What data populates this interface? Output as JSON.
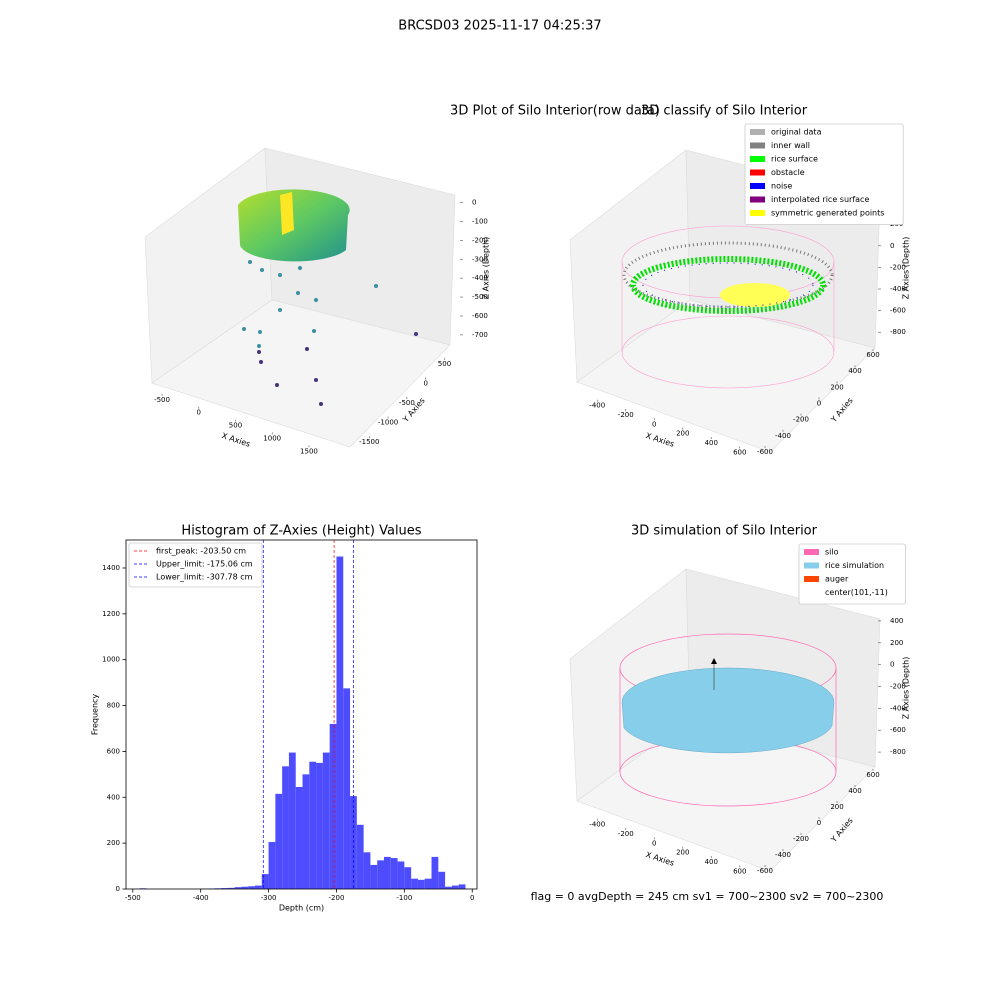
{
  "title": "BRCSD03 2025-11-17 04:25:37",
  "footer": "flag = 0     avgDepth = 245 cm  sv1 = 700~2300  sv2 = 700~2300",
  "chart_data": [
    {
      "type": "scatter3d",
      "title": "3D Plot of Silo Interior(row data)",
      "xlabel": "X Axies",
      "ylabel": "Y Axies",
      "zlabel": "Z Axies (Depth)",
      "xlim": [
        -650,
        1800
      ],
      "xticks": [
        -500,
        0,
        500,
        1000,
        1500
      ],
      "ylim": [
        700,
        -1800
      ],
      "yticks": [
        500,
        0,
        -500,
        -1000,
        -1500
      ],
      "zlim": [
        -780,
        40
      ],
      "zticks": [
        0,
        -100,
        -200,
        -300,
        -400,
        -500,
        -600,
        -700
      ]
    },
    {
      "type": "scatter3d",
      "title": "3D classify of Silo Interior",
      "xlim": [
        -500,
        700
      ],
      "xticks": [
        -400,
        -200,
        0,
        200,
        400,
        600
      ],
      "ylim": [
        -700,
        700
      ],
      "yticks": [
        -600,
        -400,
        -200,
        0,
        200,
        400,
        600
      ],
      "zlim": [
        -900,
        350
      ],
      "zticks": [
        200,
        0,
        -200,
        -400,
        -600,
        -800
      ],
      "xlabel": "X Axies",
      "ylabel": "Y Axies",
      "zlabel": "Z Axies (Depth)",
      "series": [
        {
          "name": "original data",
          "color": "#b0b0b0"
        },
        {
          "name": "inner wall",
          "color": "#808080"
        },
        {
          "name": "rice surface",
          "color": "#00ff00"
        },
        {
          "name": "obstacle",
          "color": "#ff0000"
        },
        {
          "name": "noise",
          "color": "#0000ff"
        },
        {
          "name": "interpolated rice surface",
          "color": "#800080"
        },
        {
          "name": "symmetric generated points",
          "color": "#ffff00"
        }
      ]
    },
    {
      "type": "histogram",
      "title": "Histogram of Z-Axies (Height) Values",
      "xlabel": "Depth (cm)",
      "ylabel": "Frequency",
      "color": "#4d4dff",
      "bins": [
        -490,
        -480,
        -470,
        -460,
        -450,
        -440,
        -430,
        -420,
        -410,
        -400,
        -390,
        -380,
        -370,
        -360,
        -350,
        -340,
        -330,
        -320,
        -310,
        -300,
        -290,
        -280,
        -270,
        -260,
        -250,
        -240,
        -230,
        -220,
        -210,
        -200,
        -190,
        -180,
        -170,
        -160,
        -150,
        -140,
        -130,
        -120,
        -110,
        -100,
        -90,
        -80,
        -70,
        -60,
        -50,
        -40,
        -30,
        -20,
        -10
      ],
      "counts": [
        3,
        0,
        0,
        0,
        0,
        0,
        0,
        0,
        0,
        1,
        2,
        3,
        4,
        5,
        8,
        10,
        12,
        15,
        65,
        205,
        415,
        535,
        595,
        445,
        500,
        555,
        550,
        595,
        720,
        1450,
        875,
        405,
        280,
        160,
        105,
        125,
        140,
        135,
        120,
        95,
        45,
        40,
        45,
        140,
        75,
        10,
        15,
        20
      ],
      "xlim": [
        -510,
        7
      ],
      "xticks": [
        -500,
        -400,
        -300,
        -200,
        -100,
        0
      ],
      "ylim": [
        0,
        1522
      ],
      "yticks": [
        0,
        200,
        400,
        600,
        800,
        1000,
        1200,
        1400
      ],
      "lines": [
        {
          "name": "first_peak: -203.50 cm",
          "value": -203.5,
          "color": "#ff0000"
        },
        {
          "name": "Upper_limit: -175.06 cm",
          "value": -175.06,
          "color": "#0000ff"
        },
        {
          "name": "Lower_limit: -307.78 cm",
          "value": -307.78,
          "color": "#0000ff"
        }
      ]
    },
    {
      "type": "scatter3d",
      "title": "3D simulation of Silo Interior",
      "xlabel": "X Axies",
      "ylabel": "Y Axies",
      "zlabel": "Z Axies (Depth)",
      "xlim": [
        -500,
        700
      ],
      "xticks": [
        -400,
        -200,
        0,
        200,
        400,
        600
      ],
      "ylim": [
        -700,
        700
      ],
      "yticks": [
        -600,
        -400,
        -200,
        0,
        200,
        400,
        600
      ],
      "zlim": [
        -900,
        500
      ],
      "zticks": [
        400,
        200,
        0,
        -200,
        -400,
        -600,
        -800
      ],
      "series": [
        {
          "name": "silo",
          "color": "#ff69b4"
        },
        {
          "name": "rice simulation",
          "color": "#87ceeb"
        },
        {
          "name": "auger",
          "color": "#ff4500"
        },
        {
          "name": "center(101,-11)"
        }
      ]
    }
  ]
}
